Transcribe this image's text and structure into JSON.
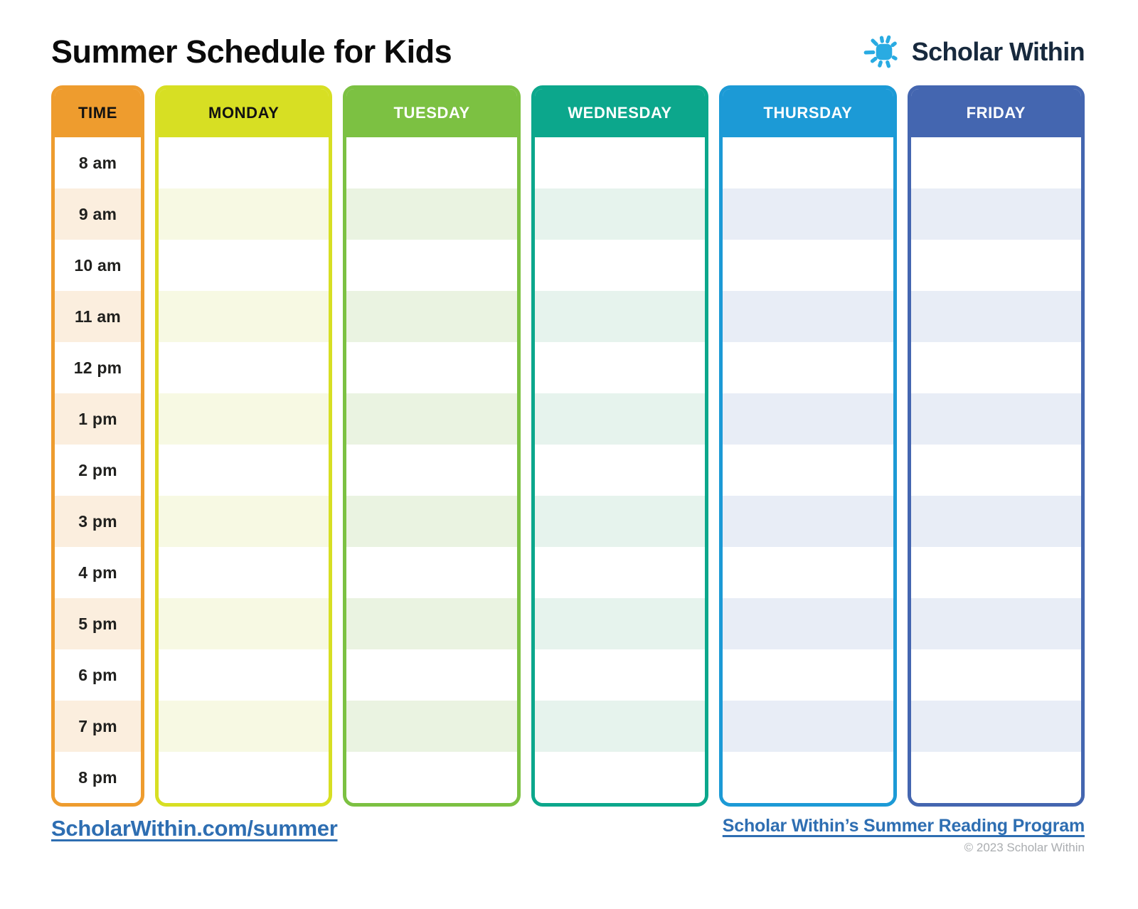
{
  "page_title": "Summer Schedule for Kids",
  "logo": {
    "brand": "Scholar Within",
    "icon": "sun-icon",
    "sun_color": "#29abe2",
    "text_color": "#17293d"
  },
  "schedule": {
    "times": [
      "8 am",
      "9 am",
      "10 am",
      "11 am",
      "12 pm",
      "1 pm",
      "2 pm",
      "3 pm",
      "4 pm",
      "5 pm",
      "6 pm",
      "7 pm",
      "8 pm"
    ],
    "columns": [
      {
        "label": "TIME",
        "type": "time",
        "color": "#ee9c2e",
        "stripe": "#fbeede",
        "header_text": "#121212"
      },
      {
        "label": "MONDAY",
        "type": "day",
        "color": "#d7df23",
        "stripe": "#f7f9e3",
        "header_text": "#121212"
      },
      {
        "label": "TUESDAY",
        "type": "day",
        "color": "#7cc142",
        "stripe": "#eaf3e1",
        "header_text": "#ffffff"
      },
      {
        "label": "WEDNESDAY",
        "type": "day",
        "color": "#0ca78c",
        "stripe": "#e6f3ed",
        "header_text": "#ffffff"
      },
      {
        "label": "THURSDAY",
        "type": "day",
        "color": "#1c9ad6",
        "stripe": "#e8edf6",
        "header_text": "#ffffff"
      },
      {
        "label": "FRIDAY",
        "type": "day",
        "color": "#4466b0",
        "stripe": "#e8edf6",
        "header_text": "#ffffff"
      }
    ]
  },
  "footer": {
    "left_link": "ScholarWithin.com/summer",
    "right_link": "Scholar Within’s Summer Reading Program",
    "copyright": "© 2023 Scholar Within",
    "link_color": "#2e6eb2"
  }
}
